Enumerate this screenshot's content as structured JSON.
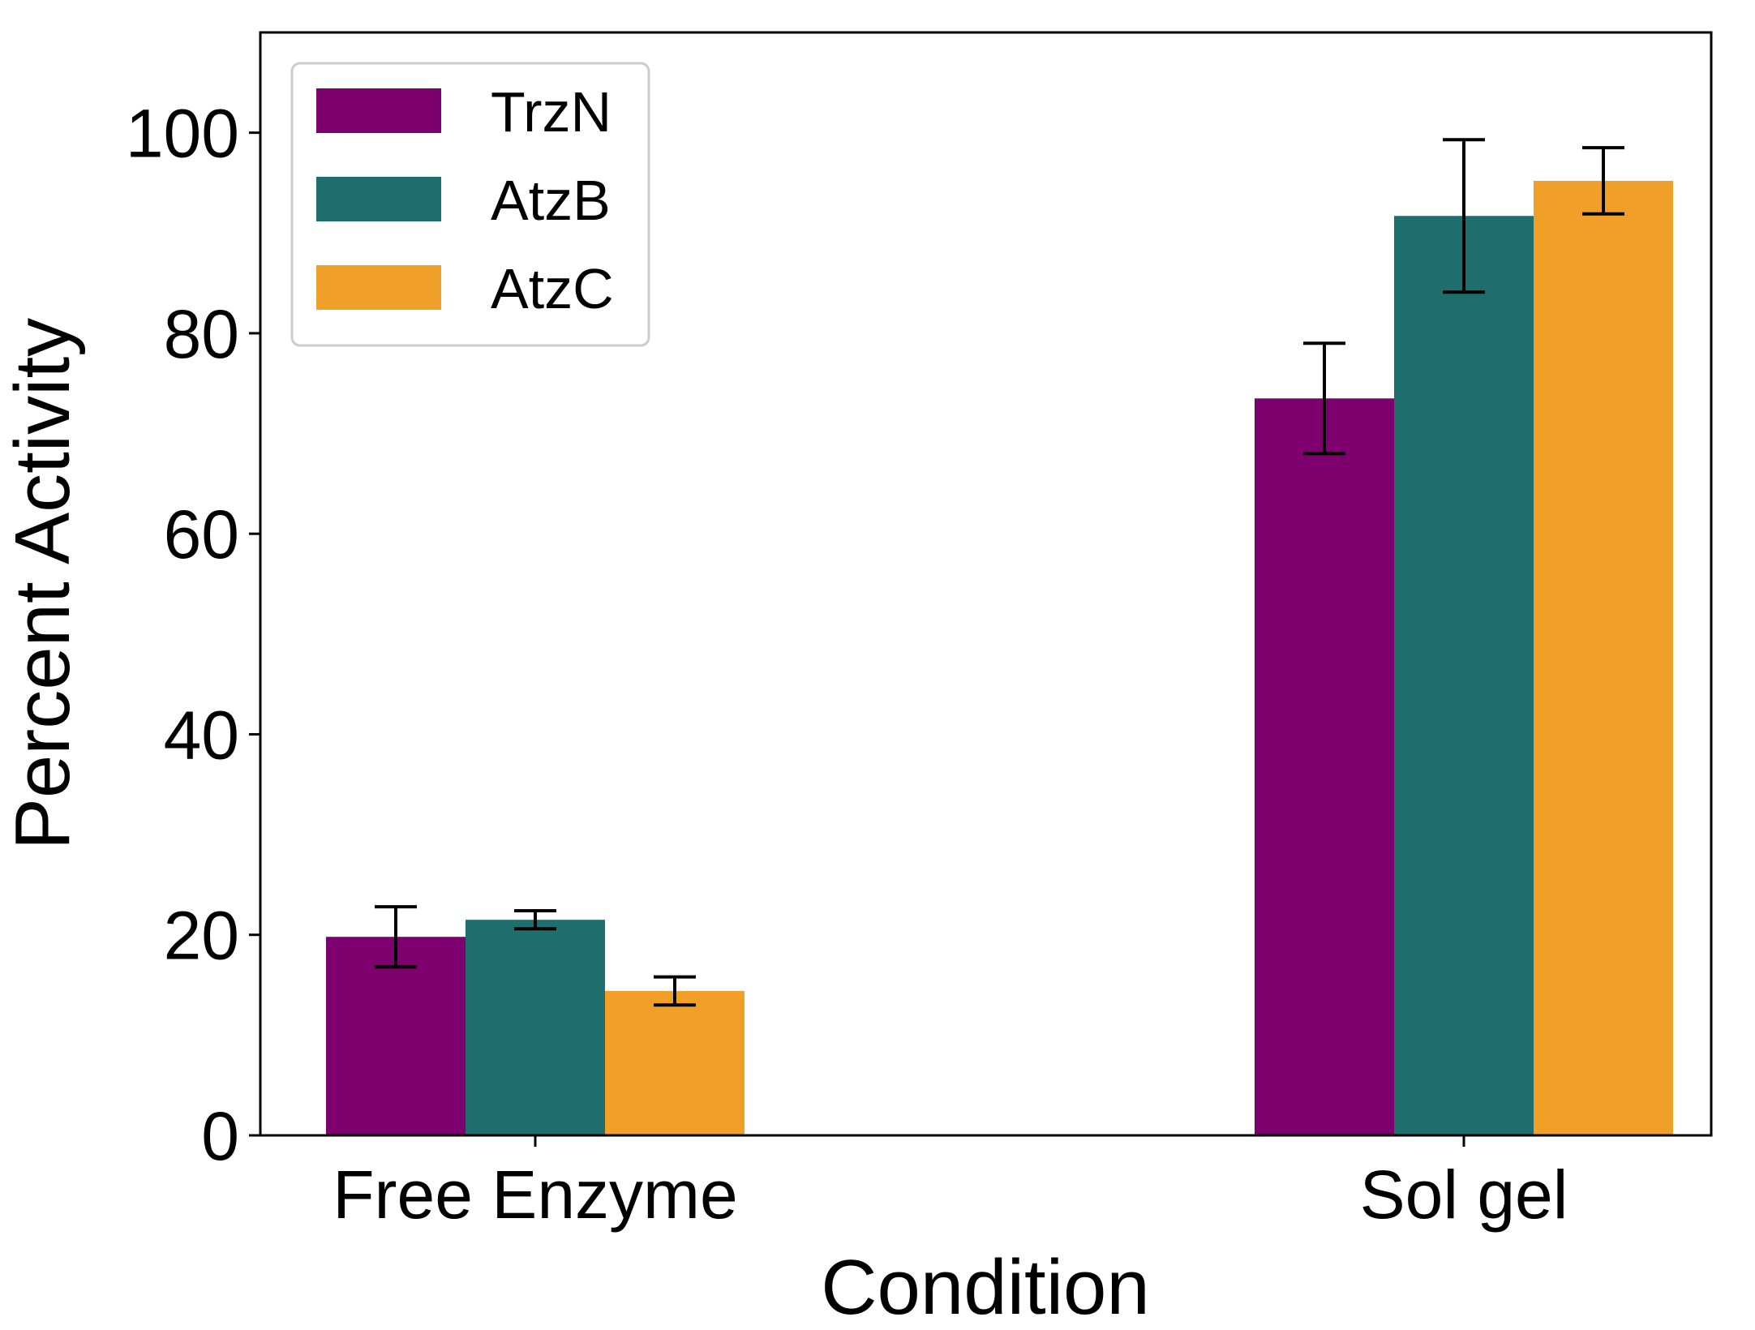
{
  "chart_data": {
    "type": "bar",
    "title": "",
    "xlabel": "Condition",
    "ylabel": "Percent Activity",
    "categories": [
      "Free Enzyme",
      "Sol gel"
    ],
    "ylim": [
      0,
      110
    ],
    "yticks": [
      0,
      20,
      40,
      60,
      80,
      100
    ],
    "ytick_labels": [
      "0",
      "20",
      "40",
      "60",
      "80",
      "100"
    ],
    "grid": false,
    "legend_position": "top-left",
    "series": [
      {
        "name": "TrzN",
        "color": "#7E006E",
        "values": [
          19.8,
          73.5
        ],
        "errors": [
          3.0,
          5.5
        ]
      },
      {
        "name": "AtzB",
        "color": "#1F6E6E",
        "values": [
          21.5,
          91.7
        ],
        "errors": [
          0.9,
          7.6
        ]
      },
      {
        "name": "AtzC",
        "color": "#F0A028",
        "values": [
          14.4,
          95.2
        ],
        "errors": [
          1.4,
          3.3
        ]
      }
    ]
  }
}
